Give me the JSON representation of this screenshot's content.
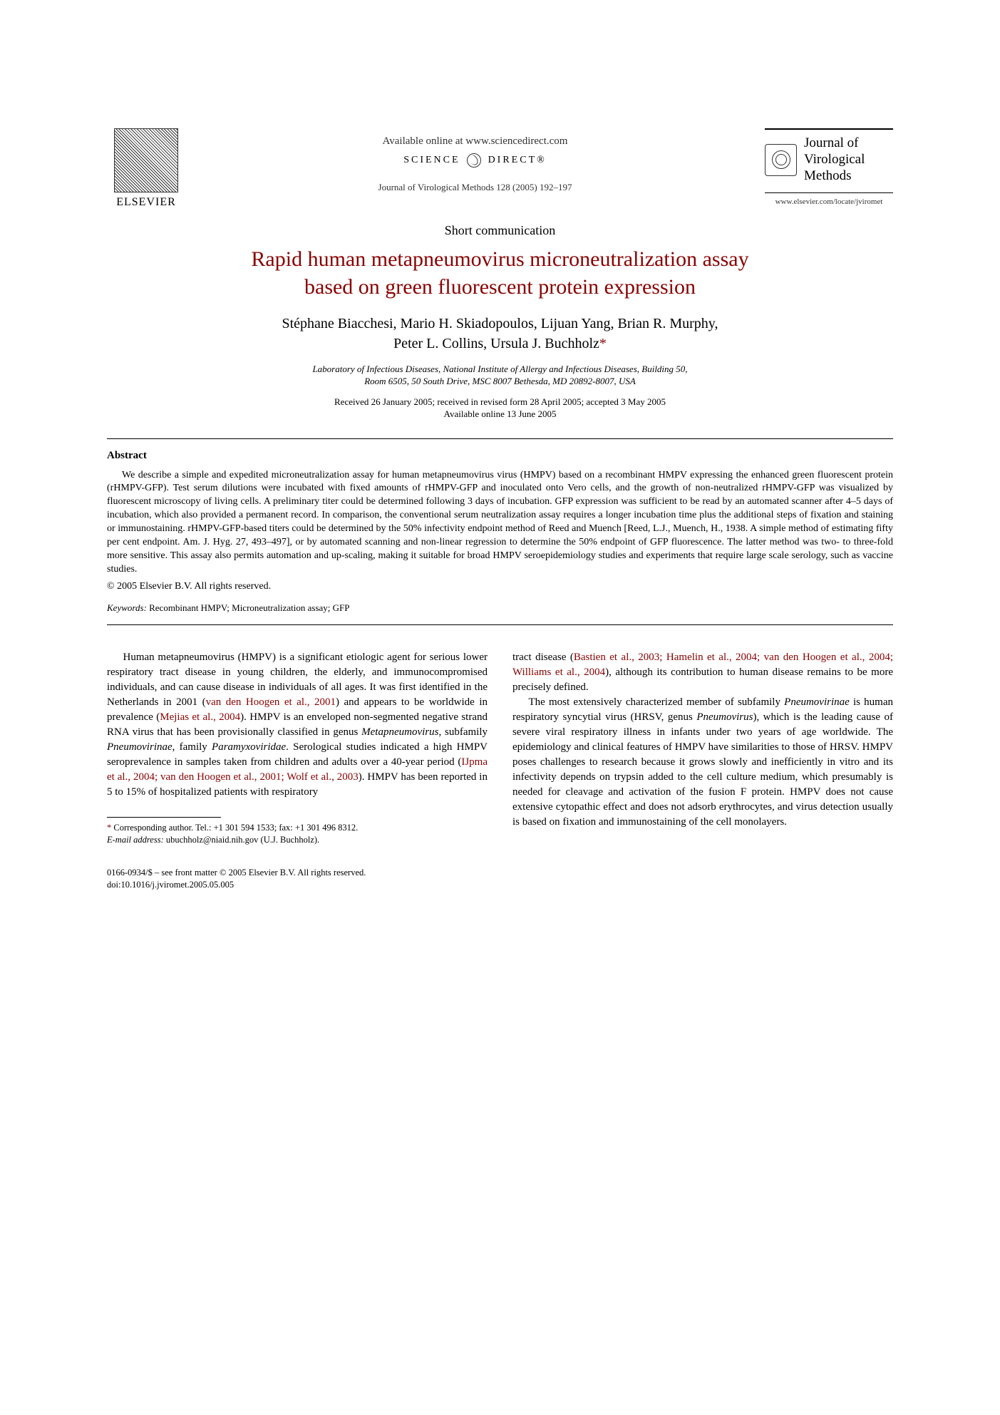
{
  "header": {
    "available_online": "Available online at www.sciencedirect.com",
    "science_direct_left": "SCIENCE",
    "science_direct_right": "DIRECT®",
    "journal_ref": "Journal of Virological Methods 128 (2005) 192–197",
    "elsevier_label": "ELSEVIER",
    "journal_title": "Journal of Virological Methods",
    "journal_url": "www.elsevier.com/locate/jviromet"
  },
  "article": {
    "type": "Short communication",
    "title_line1": "Rapid human metapneumovirus microneutralization assay",
    "title_line2": "based on green fluorescent protein expression",
    "authors_line1": "Stéphane Biacchesi, Mario H. Skiadopoulos, Lijuan Yang, Brian R. Murphy,",
    "authors_line2": "Peter L. Collins, Ursula J. Buchholz",
    "corr_marker": "*",
    "affiliation_line1": "Laboratory of Infectious Diseases, National Institute of Allergy and Infectious Diseases, Building 50,",
    "affiliation_line2": "Room 6505, 50 South Drive, MSC 8007 Bethesda, MD 20892-8007, USA",
    "dates_line1": "Received 26 January 2005; received in revised form 28 April 2005; accepted 3 May 2005",
    "dates_line2": "Available online 13 June 2005"
  },
  "abstract": {
    "heading": "Abstract",
    "text": "We describe a simple and expedited microneutralization assay for human metapneumovirus virus (HMPV) based on a recombinant HMPV expressing the enhanced green fluorescent protein (rHMPV-GFP). Test serum dilutions were incubated with fixed amounts of rHMPV-GFP and inoculated onto Vero cells, and the growth of non-neutralized rHMPV-GFP was visualized by fluorescent microscopy of living cells. A preliminary titer could be determined following 3 days of incubation. GFP expression was sufficient to be read by an automated scanner after 4–5 days of incubation, which also provided a permanent record. In comparison, the conventional serum neutralization assay requires a longer incubation time plus the additional steps of fixation and staining or immunostaining. rHMPV-GFP-based titers could be determined by the 50% infectivity endpoint method of Reed and Muench [Reed, L.J., Muench, H., 1938. A simple method of estimating fifty per cent endpoint. Am. J. Hyg. 27, 493–497], or by automated scanning and non-linear regression to determine the 50% endpoint of GFP fluorescence. The latter method was two- to three-fold more sensitive. This assay also permits automation and up-scaling, making it suitable for broad HMPV seroepidemiology studies and experiments that require large scale serology, such as vaccine studies.",
    "copyright": "© 2005 Elsevier B.V. All rights reserved.",
    "keywords_label": "Keywords:",
    "keywords_text": " Recombinant HMPV; Microneutralization assay; GFP"
  },
  "body": {
    "col1_p1_a": "Human metapneumovirus (HMPV) is a significant etiologic agent for serious lower respiratory tract disease in young children, the elderly, and immunocompromised individuals, and can cause disease in individuals of all ages. It was first identified in the Netherlands in 2001 (",
    "col1_link1": "van den Hoogen et al., 2001",
    "col1_p1_b": ") and appears to be worldwide in prevalence (",
    "col1_link2": "Mejias et al., 2004",
    "col1_p1_c": "). HMPV is an enveloped non-segmented negative strand RNA virus that has been provisionally classified in genus ",
    "col1_ital1": "Metapneumovirus",
    "col1_p1_d": ", subfamily ",
    "col1_ital2": "Pneumovirinae",
    "col1_p1_e": ", family ",
    "col1_ital3": "Paramyxoviridae",
    "col1_p1_f": ". Serological studies indicated a high HMPV seroprevalence in samples taken from children and adults over a 40-year period (",
    "col1_link3": "IJpma et al., 2004; van den Hoogen et al., 2001; Wolf et al., 2003",
    "col1_p1_g": "). HMPV has been reported in 5 to 15% of hospitalized patients with respiratory",
    "col2_p1_a": "tract disease (",
    "col2_link1": "Bastien et al., 2003; Hamelin et al., 2004; van den Hoogen et al., 2004; Williams et al., 2004",
    "col2_p1_b": "), although its contribution to human disease remains to be more precisely defined.",
    "col2_p2_a": "The most extensively characterized member of subfamily ",
    "col2_ital1": "Pneumovirinae",
    "col2_p2_b": " is human respiratory syncytial virus (HRSV, genus ",
    "col2_ital2": "Pneumovirus",
    "col2_p2_c": "), which is the leading cause of severe viral respiratory illness in infants under two years of age worldwide. The epidemiology and clinical features of HMPV have similarities to those of HRSV. HMPV poses challenges to research because it grows slowly and inefficiently in vitro and its infectivity depends on trypsin added to the cell culture medium, which presumably is needed for cleavage and activation of the fusion F protein. HMPV does not cause extensive cytopathic effect and does not adsorb erythrocytes, and virus detection usually is based on fixation and immunostaining of the cell monolayers."
  },
  "footnote": {
    "corr_label": "Corresponding author. Tel.: +1 301 594 1533; fax: +1 301 496 8312.",
    "email_label": "E-mail address:",
    "email_value": " ubuchholz@niaid.nih.gov (U.J. Buchholz)."
  },
  "footer": {
    "issn_line": "0166-0934/$ – see front matter © 2005 Elsevier B.V. All rights reserved.",
    "doi_line": "doi:10.1016/j.jviromet.2005.05.005"
  },
  "colors": {
    "title_color": "#8b0000",
    "link_color": "#8b0000",
    "text_color": "#000000",
    "background": "#ffffff"
  }
}
